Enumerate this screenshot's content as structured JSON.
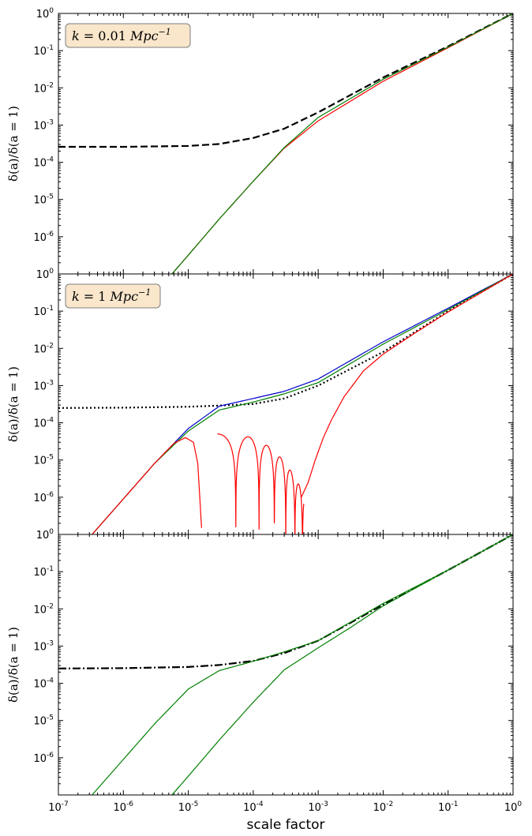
{
  "chart_data": [
    {
      "type": "line",
      "panel": "top",
      "annotation": {
        "k_label": "k",
        "eq": " = ",
        "value": "0.01",
        "unit": "Mpc",
        "unit_exp": "−1"
      },
      "ylabel": "δ(a)/δ(a = 1)",
      "xlabel": "",
      "xscale": "log",
      "yscale": "log",
      "xlim": [
        1e-07,
        1
      ],
      "ylim": [
        1e-07,
        1
      ],
      "yticks": [
        {
          "base": "10",
          "exp": "0"
        },
        {
          "base": "10",
          "exp": "-1"
        },
        {
          "base": "10",
          "exp": "-2"
        },
        {
          "base": "10",
          "exp": "-3"
        },
        {
          "base": "10",
          "exp": "-4"
        },
        {
          "base": "10",
          "exp": "-5"
        },
        {
          "base": "10",
          "exp": "-6"
        }
      ],
      "xticks": [],
      "series": [
        {
          "color": "#000000",
          "style": "dashed",
          "x": [
            1e-07,
            1e-06,
            1e-05,
            3e-05,
            0.0001,
            0.0003,
            0.001,
            0.01,
            0.1,
            1
          ],
          "y": [
            0.00026,
            0.00026,
            0.000275,
            0.00031,
            0.00045,
            0.0008,
            0.0022,
            0.019,
            0.13,
            1
          ]
        },
        {
          "color": "#ff0000",
          "style": "solid",
          "x": [
            5.6e-06,
            1e-05,
            3e-05,
            0.0001,
            0.0003,
            0.001,
            0.01,
            0.1,
            1
          ],
          "y": [
            1e-07,
            3.2e-07,
            3e-06,
            3.1e-05,
            0.00024,
            0.0013,
            0.015,
            0.12,
            1
          ]
        },
        {
          "color": "#008000",
          "style": "solid",
          "x": [
            5.6e-06,
            1e-05,
            3e-05,
            0.0001,
            0.0003,
            0.001,
            0.01,
            0.1,
            1
          ],
          "y": [
            1e-07,
            3.2e-07,
            3e-06,
            3.1e-05,
            0.00025,
            0.0016,
            0.017,
            0.125,
            1
          ]
        }
      ]
    },
    {
      "type": "line",
      "panel": "middle",
      "annotation": {
        "k_label": "k",
        "eq": " = ",
        "value": "1",
        "unit": "Mpc",
        "unit_exp": "−1"
      },
      "ylabel": "δ(a)/δ(a = 1)",
      "xlabel": "",
      "xscale": "log",
      "yscale": "log",
      "xlim": [
        1e-07,
        1
      ],
      "ylim": [
        1e-07,
        1
      ],
      "yticks": [
        {
          "base": "10",
          "exp": "0"
        },
        {
          "base": "10",
          "exp": "-1"
        },
        {
          "base": "10",
          "exp": "-2"
        },
        {
          "base": "10",
          "exp": "-3"
        },
        {
          "base": "10",
          "exp": "-4"
        },
        {
          "base": "10",
          "exp": "-5"
        },
        {
          "base": "10",
          "exp": "-6"
        }
      ],
      "xticks": [],
      "series": [
        {
          "color": "#000000",
          "style": "dotted",
          "x": [
            1e-07,
            1e-06,
            1e-05,
            3e-05,
            0.0001,
            0.0003,
            0.001,
            0.01,
            0.1,
            1
          ],
          "y": [
            0.00025,
            0.000255,
            0.00027,
            0.00029,
            0.00032,
            0.00045,
            0.001,
            0.008,
            0.1,
            1
          ]
        },
        {
          "color": "#0000cc",
          "style": "solid",
          "x": [
            3.3e-07,
            1e-06,
            3e-06,
            1e-05,
            3e-05,
            0.0001,
            0.0003,
            0.001,
            0.01,
            0.1,
            1
          ],
          "y": [
            1e-07,
            9e-07,
            8e-06,
            7e-05,
            0.00028,
            0.00045,
            0.0007,
            0.0015,
            0.015,
            0.12,
            1
          ]
        },
        {
          "color": "#008000",
          "style": "solid",
          "x": [
            3.3e-07,
            1e-06,
            3e-06,
            1e-05,
            3e-05,
            0.0001,
            0.0003,
            0.001,
            0.01,
            0.1,
            1
          ],
          "y": [
            1e-07,
            9e-07,
            8e-06,
            6e-05,
            0.00022,
            0.00036,
            0.0006,
            0.0012,
            0.013,
            0.11,
            1
          ]
        },
        {
          "color": "#ff0000",
          "style": "solid",
          "x": [
            3.3e-07,
            1e-06,
            3e-06,
            6e-06,
            9e-06,
            1.2e-05,
            1.4e-05,
            1.6e-05
          ],
          "y": [
            1e-07,
            9e-07,
            8e-06,
            2.8e-05,
            4e-05,
            3e-05,
            8e-06,
            1.5e-07
          ]
        },
        {
          "color": "#ff0000",
          "style": "oscillating",
          "x": [
            2.8e-05,
            0.0006
          ],
          "y": [
            5e-05,
            1e-07
          ]
        },
        {
          "color": "#ff0000",
          "style": "solid",
          "x": [
            0.00055,
            0.0007,
            0.0009,
            0.0012,
            0.0016,
            0.0025,
            0.005,
            0.01,
            0.03,
            0.1,
            1
          ],
          "y": [
            1e-06,
            2.5e-06,
            1e-05,
            4e-05,
            0.00012,
            0.0005,
            0.0025,
            0.007,
            0.025,
            0.095,
            1
          ]
        }
      ]
    },
    {
      "type": "line",
      "panel": "bottom",
      "ylabel": "δ(a)/δ(a = 1)",
      "xlabel": "scale factor",
      "xscale": "log",
      "yscale": "log",
      "xlim": [
        1e-07,
        1
      ],
      "ylim": [
        1e-07,
        1
      ],
      "yticks": [
        {
          "base": "10",
          "exp": "0"
        },
        {
          "base": "10",
          "exp": "-1"
        },
        {
          "base": "10",
          "exp": "-2"
        },
        {
          "base": "10",
          "exp": "-3"
        },
        {
          "base": "10",
          "exp": "-4"
        },
        {
          "base": "10",
          "exp": "-5"
        },
        {
          "base": "10",
          "exp": "-6"
        }
      ],
      "xticks": [
        {
          "base": "10",
          "exp": "-7"
        },
        {
          "base": "10",
          "exp": "-6"
        },
        {
          "base": "10",
          "exp": "-5"
        },
        {
          "base": "10",
          "exp": "-4"
        },
        {
          "base": "10",
          "exp": "-3"
        },
        {
          "base": "10",
          "exp": "-2"
        },
        {
          "base": "10",
          "exp": "-1"
        },
        {
          "base": "10",
          "exp": "0"
        }
      ],
      "series": [
        {
          "color": "#000000",
          "style": "dashdot",
          "x": [
            1e-07,
            1e-06,
            1e-05,
            3e-05,
            0.0001,
            0.0003,
            0.001,
            0.01,
            0.1,
            1
          ],
          "y": [
            0.00025,
            0.000255,
            0.000275,
            0.00031,
            0.0004,
            0.00065,
            0.0014,
            0.013,
            0.11,
            1
          ]
        },
        {
          "color": "#008000",
          "style": "solid",
          "x": [
            3.3e-07,
            1e-06,
            3e-06,
            1e-05,
            3e-05,
            0.0001,
            0.0003,
            0.001,
            0.01,
            0.1,
            1
          ],
          "y": [
            1e-07,
            9e-07,
            8e-06,
            7e-05,
            0.00022,
            0.00039,
            0.0007,
            0.0014,
            0.014,
            0.11,
            1
          ]
        },
        {
          "color": "#008000",
          "style": "solid",
          "x": [
            5.6e-06,
            1e-05,
            3e-05,
            0.0001,
            0.0003,
            0.001,
            0.003,
            0.01,
            0.1,
            1
          ],
          "y": [
            1e-07,
            3.2e-07,
            3e-06,
            3.1e-05,
            0.00023,
            0.0009,
            0.003,
            0.012,
            0.11,
            1
          ]
        }
      ]
    }
  ]
}
